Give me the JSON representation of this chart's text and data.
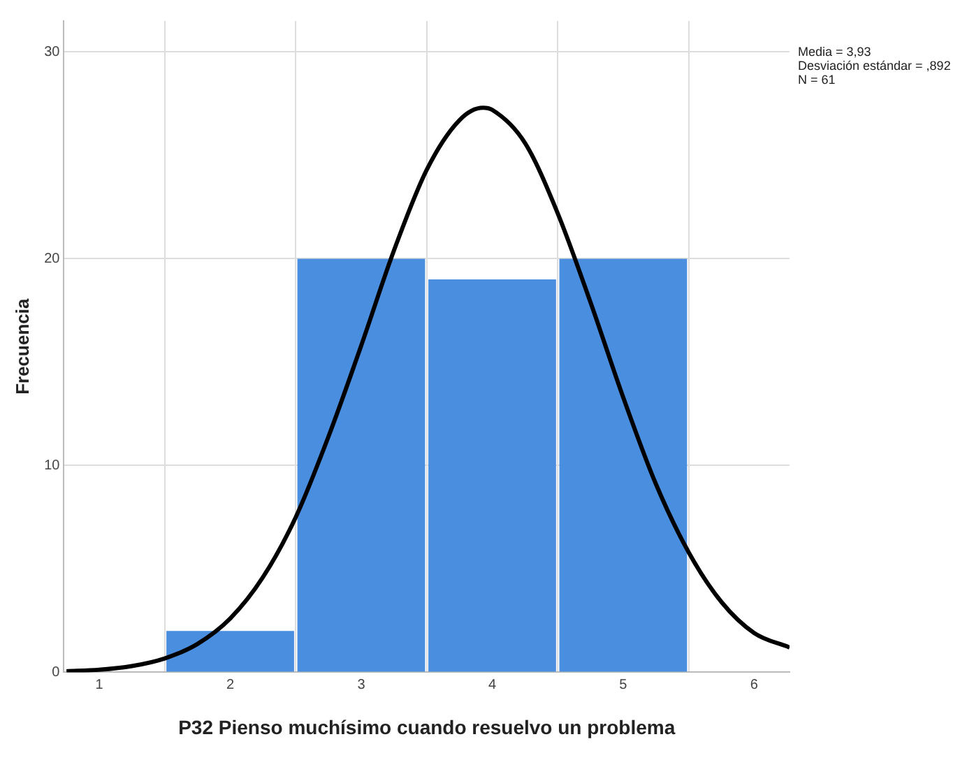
{
  "chart_data": {
    "type": "histogram",
    "xlabel": "P32 Pienso muchísimo cuando resuelvo un problema",
    "ylabel": "Frecuencia",
    "bins": [
      1.5,
      2.5,
      3.5,
      4.5,
      5.5
    ],
    "series": [
      {
        "color": "#4a8ee0",
        "values": [
          2,
          20,
          19,
          20
        ]
      },
      {
        "type": "line",
        "color": "#000000",
        "x": [
          0.75,
          1,
          1.25,
          1.5,
          1.75,
          2,
          2.25,
          2.5,
          2.75,
          3,
          3.25,
          3.5,
          3.75,
          3.93,
          4,
          4.25,
          4.5,
          4.75,
          5,
          5.25,
          5.5,
          5.75,
          6,
          6.27
        ],
        "values": [
          0.05,
          0.12,
          0.3,
          0.67,
          1.37,
          2.6,
          4.6,
          7.5,
          11.4,
          15.8,
          20.4,
          24.3,
          26.7,
          27.3,
          27.2,
          25.6,
          22.2,
          17.9,
          13.3,
          9.1,
          5.8,
          3.4,
          1.9,
          1.2
        ]
      }
    ],
    "xlim": [
      0.73,
      6.27
    ],
    "xticks": [
      1,
      2,
      3,
      4,
      5,
      6
    ],
    "ylim": [
      0,
      31.5
    ],
    "yticks": [
      0,
      10,
      20,
      30
    ],
    "grid": true,
    "legend": false,
    "marker": "none",
    "annotations": [
      "Media = 3,93",
      "Desviación estándar = ,892",
      "N = 61"
    ]
  }
}
